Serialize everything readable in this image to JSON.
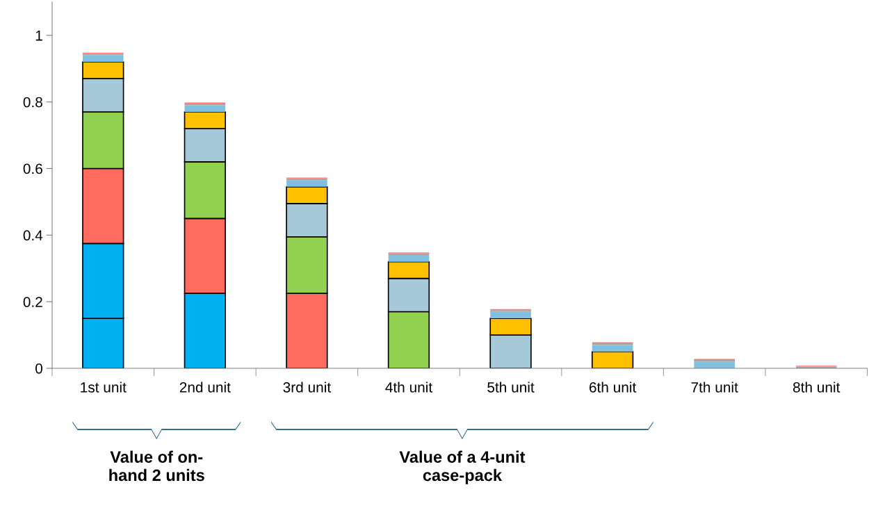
{
  "chart_data": {
    "type": "bar",
    "stacked": true,
    "categories": [
      "1st unit",
      "2nd unit",
      "3rd unit",
      "4th unit",
      "5th unit",
      "6th unit",
      "7th unit",
      "8th unit"
    ],
    "series": [
      {
        "color": "#00b0f0",
        "values": [
          0.15,
          null,
          null,
          null,
          null,
          null,
          null,
          null
        ]
      },
      {
        "color": "#00b0f0",
        "values": [
          0.225,
          0.225,
          null,
          null,
          null,
          null,
          null,
          null
        ]
      },
      {
        "color": "#ff6b5e",
        "values": [
          0.225,
          0.225,
          0.225,
          null,
          null,
          null,
          null,
          null
        ]
      },
      {
        "color": "#92d050",
        "values": [
          0.17,
          0.17,
          0.17,
          0.17,
          null,
          null,
          null,
          null
        ]
      },
      {
        "color": "#a5c9d9",
        "values": [
          0.1,
          0.1,
          0.1,
          0.1,
          0.1,
          null,
          null,
          null
        ]
      },
      {
        "color": "#ffc000",
        "values": [
          0.05,
          0.05,
          0.05,
          0.05,
          0.05,
          0.05,
          null,
          null
        ]
      },
      {
        "color": "#7fbfe0",
        "values": [
          0.02,
          0.02,
          0.02,
          0.02,
          0.02,
          0.02,
          0.02,
          null
        ]
      },
      {
        "color": "#a6a6a6",
        "values": [
          0.005,
          0.005,
          0.005,
          0.005,
          0.005,
          0.005,
          0.005,
          0.005
        ]
      },
      {
        "color": "#ff7c70",
        "values": [
          0.003,
          0.003,
          0.003,
          0.003,
          0.003,
          0.003,
          0.003,
          0.003
        ]
      }
    ],
    "ylim": [
      0,
      1.1
    ],
    "yticks": [
      0,
      0.2,
      0.4,
      0.6,
      0.8,
      1
    ],
    "grid": false,
    "legend": false,
    "annotations": [
      "Value of on-\nhand 2 units",
      "Value of a 4-unit\ncase-pack"
    ]
  }
}
